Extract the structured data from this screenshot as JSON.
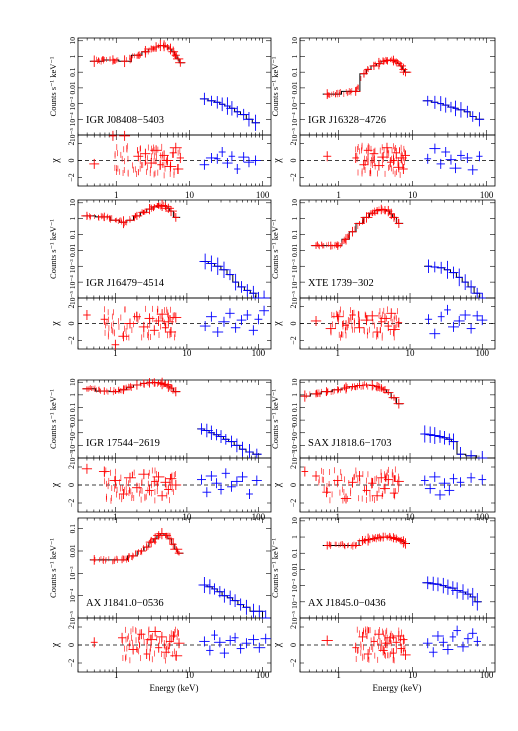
{
  "figure": {
    "xlabel": "Energy (keV)",
    "ylabel_counts": "Counts s⁻¹ keV⁻¹",
    "ylabel_resid": "χ",
    "colors": {
      "soft": "#ff0000",
      "hard": "#0000ff",
      "model": "#000000"
    }
  },
  "chart_data": [
    {
      "type": "scatter",
      "source": "IGR J08408−5403",
      "panel": "row1-left",
      "xlog": true,
      "xlim": [
        0.3,
        130
      ],
      "ylog": true,
      "ylim": [
        1e-05,
        15
      ],
      "x_ticks": [
        "1",
        "10",
        "100"
      ],
      "y_ticks": [
        "10",
        "1",
        "0.1",
        "0.01",
        "10⁻³",
        "10⁻⁴",
        "10⁻⁵"
      ],
      "soft": {
        "x": [
          0.5,
          0.9,
          1.3,
          2,
          2.5,
          3,
          3.5,
          4,
          4.5,
          5,
          5.5,
          6,
          6.5,
          7,
          7.5
        ],
        "y": [
          0.5,
          0.6,
          0.5,
          1.2,
          2.0,
          3.0,
          4.0,
          5.0,
          4.8,
          4.0,
          3.0,
          2.0,
          1.2,
          0.7,
          0.4
        ]
      },
      "hard": {
        "x": [
          16,
          20,
          24,
          28,
          33,
          38,
          45,
          55,
          65,
          80
        ],
        "y": [
          0.002,
          0.0015,
          0.0012,
          0.0009,
          0.0007,
          0.0005,
          0.0003,
          0.0002,
          0.0001,
          6e-05
        ]
      },
      "resid_soft": [
        -0.4,
        3.0,
        3.2,
        0.5,
        0.8,
        -0.3,
        1.2,
        -0.5,
        0.6,
        0.0,
        -0.7,
        0.9,
        1.5,
        -1.0,
        0.3
      ],
      "resid_hard": [
        -0.5,
        0.3,
        0.2,
        1.0,
        -0.3,
        0.5,
        -1.0,
        0.4,
        -0.2,
        0.0
      ],
      "resid_ylim": [
        -3,
        3
      ],
      "resid_ticks": [
        "2",
        "0",
        "−2"
      ]
    },
    {
      "type": "scatter",
      "source": "IGR J16328−4726",
      "panel": "row1-right",
      "xlog": true,
      "xlim": [
        0.3,
        130
      ],
      "ylog": true,
      "ylim": [
        1e-05,
        15
      ],
      "x_ticks": [
        "1",
        "10",
        "100"
      ],
      "y_ticks": [
        "10",
        "1",
        "0.1",
        "0.01",
        "10⁻³",
        "10⁻⁴",
        "10⁻⁵"
      ],
      "soft": {
        "x": [
          0.7,
          1.7,
          2.2,
          2.5,
          3,
          3.5,
          4,
          4.5,
          5,
          5.5,
          6,
          6.5,
          7,
          7.5,
          8
        ],
        "y": [
          0.004,
          0.006,
          0.08,
          0.15,
          0.25,
          0.35,
          0.5,
          0.55,
          0.6,
          0.55,
          0.45,
          0.35,
          0.25,
          0.15,
          0.1
        ]
      },
      "hard": {
        "x": [
          16,
          20,
          24,
          28,
          33,
          38,
          45,
          55,
          65,
          80
        ],
        "y": [
          0.0015,
          0.0012,
          0.001,
          0.0008,
          0.0006,
          0.0005,
          0.0004,
          0.0003,
          0.00015,
          0.0001
        ]
      },
      "resid_soft": [
        0.5,
        0.3,
        -0.5,
        1.2,
        0.8,
        -0.6,
        0.4,
        1.5,
        -0.2,
        0.0,
        0.9,
        -0.8,
        0.3,
        -1.0,
        0.6
      ],
      "resid_hard": [
        0.2,
        1.4,
        -0.4,
        1.0,
        0.1,
        -0.9,
        0.6,
        0.3,
        -1.1,
        0.5
      ],
      "resid_ylim": [
        -3,
        3
      ],
      "resid_ticks": [
        "2",
        "0",
        "−2"
      ]
    },
    {
      "type": "scatter",
      "source": "IGR J16479−4514",
      "panel": "row2-left",
      "xlog": true,
      "xlim": [
        0.3,
        150
      ],
      "ylog": true,
      "ylim": [
        1e-05,
        15
      ],
      "x_ticks": [
        "1",
        "10",
        "100"
      ],
      "y_ticks": [
        "10",
        "1",
        "0.1",
        "0.01",
        "10⁻³",
        "10⁻⁴",
        "10⁻⁵"
      ],
      "soft": {
        "x": [
          0.4,
          0.7,
          1.0,
          1.3,
          1.6,
          2,
          2.5,
          3,
          3.5,
          4,
          4.5,
          5,
          5.5,
          6,
          7
        ],
        "y": [
          1.5,
          1.3,
          0.8,
          0.6,
          0.8,
          1.5,
          2.5,
          4.0,
          5.5,
          6.5,
          6.8,
          6.0,
          4.5,
          3.0,
          1.2
        ]
      },
      "hard": {
        "x": [
          18,
          22,
          27,
          33,
          40,
          48,
          58,
          70,
          85,
          100,
          120
        ],
        "y": [
          0.002,
          0.0015,
          0.001,
          0.0006,
          0.0003,
          0.0001,
          5e-05,
          3e-05,
          2e-05,
          1e-05,
          1e-05
        ]
      },
      "resid_soft": [
        1.0,
        0.5,
        -2.5,
        -1.5,
        0.0,
        0.8,
        -0.4,
        0.6,
        -0.8,
        0.3,
        1.1,
        -0.5,
        0.2,
        -1.0,
        0.7
      ],
      "resid_hard": [
        -0.3,
        0.8,
        -1.0,
        0.2,
        1.2,
        -0.5,
        0.4,
        1.0,
        -0.8,
        0.5,
        1.5
      ],
      "resid_ylim": [
        -3,
        3
      ],
      "resid_ticks": [
        "2",
        "0",
        "−2"
      ]
    },
    {
      "type": "scatter",
      "source": "XTE 1739−302",
      "panel": "row2-right",
      "xlog": true,
      "xlim": [
        0.3,
        150
      ],
      "ylog": true,
      "ylim": [
        1e-05,
        15
      ],
      "x_ticks": [
        "1",
        "10",
        "100"
      ],
      "y_ticks": [
        "10",
        "1",
        "0.1",
        "0.01",
        "10⁻³",
        "10⁻⁴",
        "10⁻⁵"
      ],
      "soft": {
        "x": [
          0.5,
          0.8,
          1.0,
          1.3,
          1.6,
          2,
          2.5,
          3,
          3.5,
          4,
          4.5,
          5,
          5.5,
          6,
          7
        ],
        "y": [
          0.02,
          0.02,
          0.02,
          0.05,
          0.15,
          0.5,
          1.2,
          2.2,
          3.2,
          3.8,
          3.6,
          3.0,
          2.0,
          1.2,
          0.5
        ]
      },
      "hard": {
        "x": [
          18,
          22,
          27,
          33,
          40,
          48,
          58,
          70,
          85,
          100
        ],
        "y": [
          0.001,
          0.0009,
          0.0008,
          0.0006,
          0.0004,
          0.0002,
          0.0001,
          5e-05,
          2e-05,
          1e-05
        ]
      },
      "resid_soft": [
        0.3,
        -0.6,
        0.8,
        -0.2,
        1.0,
        -0.5,
        0.4,
        0.9,
        -1.0,
        0.2,
        0.6,
        -0.3,
        1.2,
        -0.7,
        0.1
      ],
      "resid_hard": [
        0.5,
        -1.2,
        0.8,
        1.6,
        -0.4,
        0.3,
        1.0,
        -0.6,
        0.9,
        0.4
      ],
      "resid_ylim": [
        -3,
        3
      ],
      "resid_ticks": [
        "2",
        "0",
        "−2"
      ]
    },
    {
      "type": "scatter",
      "source": "IGR 17544−2619",
      "panel": "row3-left",
      "xlog": true,
      "xlim": [
        0.3,
        150
      ],
      "ylog": true,
      "ylim": [
        1e-05,
        15
      ],
      "x_ticks": [
        "1",
        "10",
        "100"
      ],
      "y_ticks": [
        "10",
        "1",
        "0.1",
        "0.01",
        "10⁻³",
        "10⁻⁴",
        "10⁻⁵"
      ],
      "soft": {
        "x": [
          0.4,
          0.7,
          1.0,
          1.3,
          1.6,
          2,
          2.5,
          3,
          3.5,
          4,
          4.5,
          5,
          5.5,
          6,
          7
        ],
        "y": [
          3.0,
          2.0,
          1.8,
          2.5,
          4.0,
          6.0,
          8.0,
          9.0,
          9.5,
          9.0,
          8.0,
          6.5,
          5.0,
          3.5,
          1.8
        ]
      },
      "hard": {
        "x": [
          16,
          19,
          22,
          26,
          30,
          35,
          42,
          50,
          60,
          75,
          95
        ],
        "y": [
          0.002,
          0.0015,
          0.001,
          0.0007,
          0.0005,
          0.0003,
          0.0002,
          0.0001,
          5e-05,
          3e-05,
          2e-05
        ]
      },
      "resid_soft": [
        1.8,
        1.5,
        0.5,
        -1.0,
        0.8,
        -0.3,
        1.2,
        -0.6,
        0.4,
        0.9,
        -1.2,
        0.3,
        -0.5,
        0.7,
        0.0
      ],
      "resid_hard": [
        0.6,
        -0.8,
        1.0,
        0.2,
        -0.5,
        1.3,
        -0.2,
        0.4,
        0.9,
        -1.0,
        0.5
      ],
      "resid_ylim": [
        -3,
        3
      ],
      "resid_ticks": [
        "2",
        "0",
        "−2"
      ]
    },
    {
      "type": "scatter",
      "source": "SAX J1818.6−1703",
      "panel": "row3-right",
      "xlog": true,
      "xlim": [
        0.3,
        150
      ],
      "ylog": true,
      "ylim": [
        1e-05,
        15
      ],
      "x_ticks": [
        "1",
        "10",
        "100"
      ],
      "y_ticks": [
        "10",
        "1",
        "0.1",
        "0.01",
        "10⁻³",
        "10⁻⁴",
        "10⁻⁵"
      ],
      "soft": {
        "x": [
          0.35,
          0.5,
          0.7,
          1.0,
          1.3,
          1.6,
          2,
          2.5,
          3,
          3.5,
          4,
          4.5,
          5,
          6,
          7
        ],
        "y": [
          0.8,
          1.2,
          1.8,
          2.5,
          3.5,
          4.5,
          5.5,
          6.0,
          5.5,
          4.5,
          3.5,
          2.5,
          1.5,
          0.6,
          0.2
        ]
      },
      "hard": {
        "x": [
          16,
          19,
          22,
          26,
          30,
          35,
          40,
          50,
          70,
          100
        ],
        "y": [
          0.0008,
          0.0007,
          0.0006,
          0.0005,
          0.0004,
          0.0003,
          0.0002,
          2e-05,
          1.5e-05,
          1e-05
        ]
      },
      "resid_soft": [
        1.5,
        1.0,
        -0.8,
        0.5,
        -1.5,
        0.3,
        1.0,
        -0.6,
        0.2,
        -1.2,
        0.8,
        -0.4,
        0.6,
        -0.9,
        0.4
      ],
      "resid_hard": [
        0.5,
        -0.4,
        0.9,
        -1.1,
        0.2,
        -0.6,
        0.7,
        0.3,
        0.8,
        0.6
      ],
      "resid_ylim": [
        -3,
        3
      ],
      "resid_ticks": [
        "2",
        "0",
        "−2"
      ]
    },
    {
      "type": "scatter",
      "source": "AX J1841.0−0536",
      "panel": "row4-left",
      "xlog": true,
      "xlim": [
        0.3,
        130
      ],
      "ylog": true,
      "ylim": [
        1e-05,
        0.3
      ],
      "x_ticks": [
        "1",
        "10",
        "100"
      ],
      "y_ticks": [
        "0.1",
        "0.01",
        "10⁻³",
        "10⁻⁴",
        "10⁻⁵"
      ],
      "soft": {
        "x": [
          0.5,
          1.2,
          1.7,
          2.2,
          2.6,
          3.0,
          3.4,
          3.8,
          4.2,
          4.8,
          5.4,
          6.0,
          6.6,
          7.2
        ],
        "y": [
          0.004,
          0.004,
          0.006,
          0.01,
          0.015,
          0.025,
          0.035,
          0.05,
          0.06,
          0.05,
          0.035,
          0.02,
          0.012,
          0.008
        ]
      },
      "hard": {
        "x": [
          16,
          19,
          22,
          26,
          30,
          36,
          42,
          50,
          60,
          75,
          90,
          110
        ],
        "y": [
          0.0003,
          0.00025,
          0.0002,
          0.00015,
          0.0001,
          8e-05,
          6e-05,
          4e-05,
          3e-05,
          2e-05,
          2e-05,
          1e-05
        ]
      },
      "resid_soft": [
        0.3,
        0.8,
        -0.5,
        1.2,
        -1.0,
        0.6,
        1.5,
        -0.3,
        0.9,
        -0.8,
        0.4,
        1.0,
        -1.2,
        0.2
      ],
      "resid_hard": [
        0.4,
        -0.6,
        1.1,
        0.3,
        -0.9,
        0.5,
        0.8,
        -0.4,
        0.2,
        0.6,
        -0.3,
        0.7
      ],
      "resid_ylim": [
        -3,
        3
      ],
      "resid_ticks": [
        "2",
        "0",
        "−2"
      ]
    },
    {
      "type": "scatter",
      "source": "AX J1845.0−0436",
      "panel": "row4-right",
      "xlog": true,
      "xlim": [
        0.3,
        130
      ],
      "ylog": true,
      "ylim": [
        1e-05,
        15
      ],
      "x_ticks": [
        "1",
        "10",
        "100"
      ],
      "y_ticks": [
        "10",
        "1",
        "0.1",
        "0.01",
        "10⁻³",
        "10⁻⁴",
        "10⁻⁵"
      ],
      "soft": {
        "x": [
          0.7,
          1.7,
          2.1,
          2.5,
          3.0,
          3.5,
          4.0,
          4.5,
          5.0,
          5.5,
          6.0,
          6.5,
          7.0,
          7.5,
          8.0
        ],
        "y": [
          0.3,
          0.3,
          0.6,
          0.7,
          0.8,
          0.9,
          1.0,
          1.0,
          0.95,
          0.9,
          0.8,
          0.7,
          0.6,
          0.5,
          0.4
        ]
      },
      "hard": {
        "x": [
          16,
          19,
          22,
          26,
          30,
          35,
          40,
          48,
          56,
          65,
          75
        ],
        "y": [
          0.0015,
          0.0013,
          0.0012,
          0.001,
          0.0008,
          0.0007,
          0.0005,
          0.0004,
          0.0003,
          0.0002,
          0.0001
        ]
      },
      "resid_soft": [
        0.5,
        -0.3,
        0.9,
        -1.0,
        0.4,
        1.2,
        -0.6,
        0.2,
        0.8,
        -0.9,
        0.3,
        1.0,
        -0.4,
        0.6,
        -1.1
      ],
      "resid_hard": [
        0.2,
        -0.8,
        1.0,
        0.3,
        -0.5,
        0.9,
        1.6,
        -0.2,
        0.7,
        1.3,
        0.4
      ],
      "resid_ylim": [
        -3,
        3
      ],
      "resid_ticks": [
        "2",
        "0",
        "−2"
      ]
    }
  ]
}
